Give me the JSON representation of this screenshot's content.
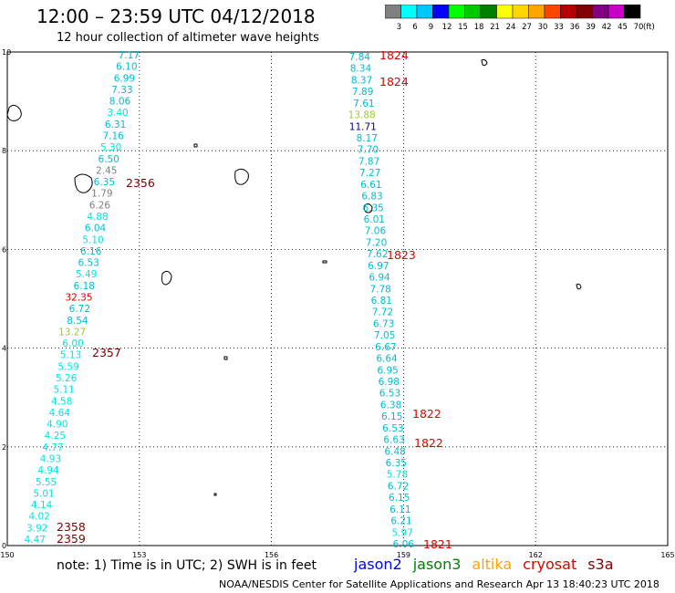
{
  "title": "12:00 – 23:59 UTC 04/12/2018",
  "subtitle": "12 hour collection of altimeter wave heights",
  "colorbar": {
    "labels": [
      "3",
      "6",
      "9",
      "12",
      "15",
      "18",
      "21",
      "24",
      "27",
      "30",
      "33",
      "36",
      "39",
      "42",
      "45",
      "70"
    ],
    "unit": "(ft)",
    "colors": [
      "#808080",
      "#00ffff",
      "#00c8ff",
      "#0000ff",
      "#00ff00",
      "#00c800",
      "#008000",
      "#ffff00",
      "#ffd700",
      "#ffa500",
      "#ff4500",
      "#b40000",
      "#800000",
      "#800080",
      "#c800c8",
      "#000000"
    ]
  },
  "axes": {
    "x_ticks": [
      "150",
      "153",
      "156",
      "159",
      "162",
      "165"
    ],
    "y_ticks": [
      "0",
      "2",
      "4",
      "6",
      "8",
      "10"
    ],
    "x_range": [
      150,
      165
    ],
    "y_range": [
      0,
      10
    ]
  },
  "track_left": [
    {
      "v": "7.17",
      "c": "#00bcd4"
    },
    {
      "v": "6.10",
      "c": "#00bcd4"
    },
    {
      "v": "6.99",
      "c": "#00bcd4"
    },
    {
      "v": "7.33",
      "c": "#00bcd4"
    },
    {
      "v": "8.06",
      "c": "#00bcd4"
    },
    {
      "v": "3.40",
      "c": "#00e5e5"
    },
    {
      "v": "6.31",
      "c": "#00bcd4"
    },
    {
      "v": "7.16",
      "c": "#00bcd4"
    },
    {
      "v": "5.30",
      "c": "#00e5e5"
    },
    {
      "v": "6.50",
      "c": "#00bcd4"
    },
    {
      "v": "2.45",
      "c": "#808080"
    },
    {
      "v": "6.35",
      "c": "#00bcd4"
    },
    {
      "v": "1.79",
      "c": "#808080"
    },
    {
      "v": "6.26",
      "c": "#808080"
    },
    {
      "v": "4.88",
      "c": "#00e5e5"
    },
    {
      "v": "6.04",
      "c": "#00bcd4"
    },
    {
      "v": "5.10",
      "c": "#00e5e5"
    },
    {
      "v": "6.16",
      "c": "#00bcd4"
    },
    {
      "v": "6.53",
      "c": "#00bcd4"
    },
    {
      "v": "5.49",
      "c": "#00e5e5"
    },
    {
      "v": "6.18",
      "c": "#00bcd4"
    },
    {
      "v": "32.35",
      "c": "#e00000"
    },
    {
      "v": "6.72",
      "c": "#00bcd4"
    },
    {
      "v": "8.54",
      "c": "#00bcd4"
    },
    {
      "v": "13.27",
      "c": "#9acd32"
    },
    {
      "v": "6.00",
      "c": "#00e5e5"
    },
    {
      "v": "5.13",
      "c": "#00e5e5"
    },
    {
      "v": "5.59",
      "c": "#00e5e5"
    },
    {
      "v": "5.26",
      "c": "#00e5e5"
    },
    {
      "v": "5.11",
      "c": "#00e5e5"
    },
    {
      "v": "4.58",
      "c": "#00e5e5"
    },
    {
      "v": "4.64",
      "c": "#00e5e5"
    },
    {
      "v": "4.90",
      "c": "#00e5e5"
    },
    {
      "v": "4.25",
      "c": "#00e5e5"
    },
    {
      "v": "4.77",
      "c": "#00e5e5"
    },
    {
      "v": "4.93",
      "c": "#00e5e5"
    },
    {
      "v": "4.94",
      "c": "#00e5e5"
    },
    {
      "v": "5.55",
      "c": "#00e5e5"
    },
    {
      "v": "5.01",
      "c": "#00e5e5"
    },
    {
      "v": "4.14",
      "c": "#00e5e5"
    },
    {
      "v": "4.02",
      "c": "#00e5e5"
    },
    {
      "v": "3.92",
      "c": "#00e5e5"
    },
    {
      "v": "4.47",
      "c": "#00e5e5"
    }
  ],
  "track_right": [
    {
      "v": "7.84",
      "c": "#00bcd4"
    },
    {
      "v": "8.34",
      "c": "#00bcd4"
    },
    {
      "v": "8.37",
      "c": "#00bcd4"
    },
    {
      "v": "7.89",
      "c": "#00bcd4"
    },
    {
      "v": "7.61",
      "c": "#00bcd4"
    },
    {
      "v": "13.88",
      "c": "#9acd32"
    },
    {
      "v": "11.71",
      "c": "#000080"
    },
    {
      "v": "8.17",
      "c": "#00bcd4"
    },
    {
      "v": "7.70",
      "c": "#00bcd4"
    },
    {
      "v": "7.87",
      "c": "#00bcd4"
    },
    {
      "v": "7.27",
      "c": "#00bcd4"
    },
    {
      "v": "6.61",
      "c": "#00bcd4"
    },
    {
      "v": "6.83",
      "c": "#00bcd4"
    },
    {
      "v": "6.35",
      "c": "#00bcd4"
    },
    {
      "v": "6.01",
      "c": "#00bcd4"
    },
    {
      "v": "7.06",
      "c": "#00bcd4"
    },
    {
      "v": "7.20",
      "c": "#00bcd4"
    },
    {
      "v": "7.62",
      "c": "#00bcd4"
    },
    {
      "v": "6.97",
      "c": "#00bcd4"
    },
    {
      "v": "6.94",
      "c": "#00bcd4"
    },
    {
      "v": "7.78",
      "c": "#00bcd4"
    },
    {
      "v": "6.81",
      "c": "#00bcd4"
    },
    {
      "v": "7.72",
      "c": "#00bcd4"
    },
    {
      "v": "6.73",
      "c": "#00bcd4"
    },
    {
      "v": "7.05",
      "c": "#00bcd4"
    },
    {
      "v": "6.67",
      "c": "#00bcd4"
    },
    {
      "v": "6.64",
      "c": "#00bcd4"
    },
    {
      "v": "6.95",
      "c": "#00bcd4"
    },
    {
      "v": "6.98",
      "c": "#00bcd4"
    },
    {
      "v": "6.53",
      "c": "#00bcd4"
    },
    {
      "v": "6.38",
      "c": "#00bcd4"
    },
    {
      "v": "6.15",
      "c": "#00bcd4"
    },
    {
      "v": "6.53",
      "c": "#00bcd4"
    },
    {
      "v": "6.63",
      "c": "#00bcd4"
    },
    {
      "v": "6.48",
      "c": "#00bcd4"
    },
    {
      "v": "6.35",
      "c": "#00bcd4"
    },
    {
      "v": "5.78",
      "c": "#00e5e5"
    },
    {
      "v": "6.72",
      "c": "#00bcd4"
    },
    {
      "v": "6.15",
      "c": "#00bcd4"
    },
    {
      "v": "6.11",
      "c": "#00bcd4"
    },
    {
      "v": "6.21",
      "c": "#00bcd4"
    },
    {
      "v": "5.97",
      "c": "#00e5e5"
    },
    {
      "v": "6.06",
      "c": "#00bcd4"
    }
  ],
  "times": [
    {
      "t": "1824",
      "c": "#e00000"
    },
    {
      "t": "1824",
      "c": "#e00000"
    },
    {
      "t": "2356",
      "c": "#800000"
    },
    {
      "t": "1823",
      "c": "#e00000"
    },
    {
      "t": "2357",
      "c": "#800000"
    },
    {
      "t": "1822",
      "c": "#e00000"
    },
    {
      "t": "1822",
      "c": "#e00000"
    },
    {
      "t": "2358",
      "c": "#800000"
    },
    {
      "t": "2359",
      "c": "#800000"
    },
    {
      "t": "1821",
      "c": "#e00000"
    }
  ],
  "footer": {
    "note": "note:  1) Time is in UTC;  2) SWH is in feet",
    "satellites": [
      {
        "name": "jason2",
        "color": "#0000ff"
      },
      {
        "name": "jason3",
        "color": "#008000"
      },
      {
        "name": "altika",
        "color": "#ffa500"
      },
      {
        "name": "cryosat",
        "color": "#e00000"
      },
      {
        "name": "s3a",
        "color": "#800000"
      }
    ],
    "credit": "NOAA/NESDIS Center for Satellite Applications and Research    Apr 13 18:40:23 UTC 2018"
  }
}
